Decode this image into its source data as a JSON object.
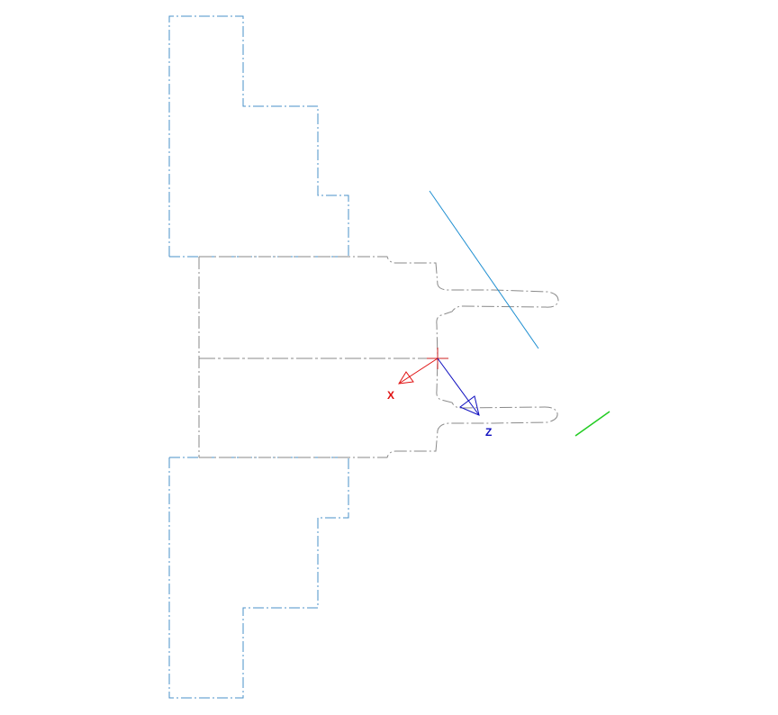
{
  "viewport": {
    "background": "#ffffff"
  },
  "colors": {
    "chuck_outline": "#4a90c8",
    "part_outline": "#8a8a8a",
    "tool_line": "#1f8fd1",
    "grid_line": "#22cc22",
    "x_axis": "#e01010",
    "z_axis": "#1010c0"
  },
  "axes": {
    "x_label": "X",
    "z_label": "Z"
  },
  "icons": {
    "origin": "crosshair-origin-icon",
    "x_arrow": "arrow-x-icon",
    "z_arrow": "arrow-z-icon"
  }
}
